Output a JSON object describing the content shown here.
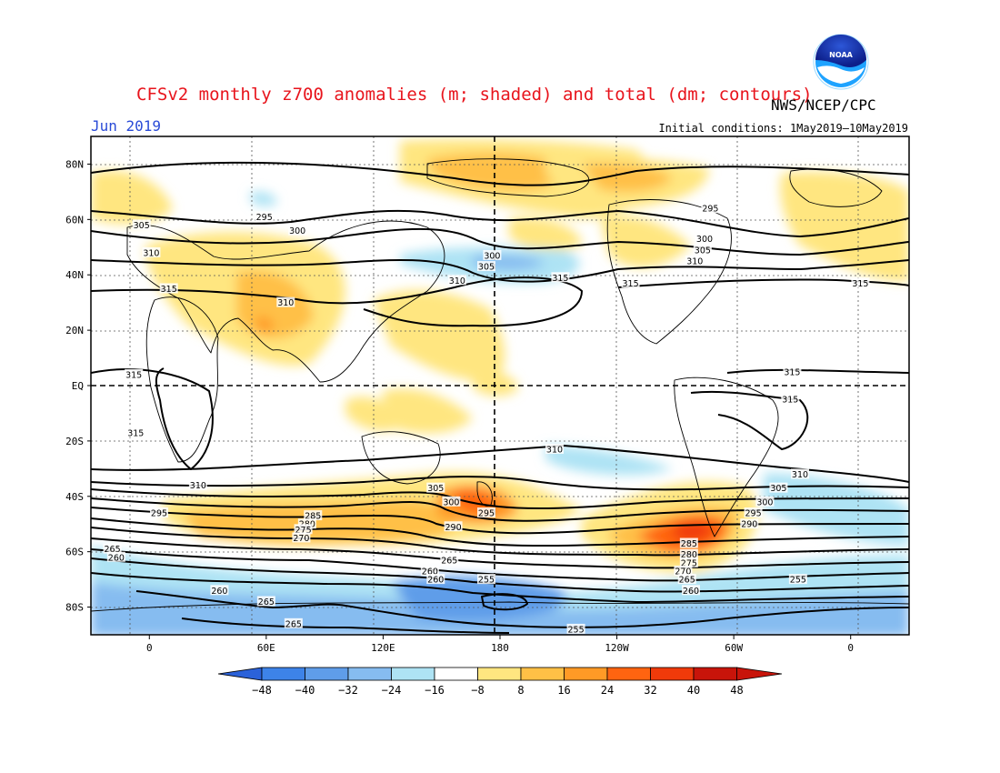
{
  "header": {
    "title": "CFSv2 monthly z700 anomalies (m; shaded) and total (dm; contours)",
    "month": "Jun 2019",
    "agency": "NWS/NCEP/CPC",
    "initial_conditions": "Initial conditions: 1May2019—10May2019",
    "logo_text": "NOAA",
    "logo_icon": "noaa-logo-icon"
  },
  "map": {
    "type": "geopotential-height-anomaly-map",
    "lat_labels": [
      "80N",
      "60N",
      "40N",
      "20N",
      "EQ",
      "20S",
      "40S",
      "60S",
      "80S"
    ],
    "lat_values": [
      80,
      60,
      40,
      20,
      0,
      -20,
      -40,
      -60,
      -80
    ],
    "lon_labels": [
      "0",
      "60E",
      "120E",
      "180",
      "120W",
      "60W",
      "0"
    ],
    "lon_values": [
      0,
      60,
      120,
      180,
      240,
      300,
      360
    ],
    "lon_range": [
      -30,
      390
    ],
    "lat_range": [
      -90,
      90
    ],
    "contour_labels": [
      {
        "text": "295",
        "lon": 59,
        "lat": 61
      },
      {
        "text": "300",
        "lon": 76,
        "lat": 56
      },
      {
        "text": "305",
        "lon": -4,
        "lat": 58
      },
      {
        "text": "310",
        "lon": 1,
        "lat": 48
      },
      {
        "text": "315",
        "lon": 10,
        "lat": 35
      },
      {
        "text": "310",
        "lon": 70,
        "lat": 30
      },
      {
        "text": "310",
        "lon": 158,
        "lat": 38
      },
      {
        "text": "305",
        "lon": 173,
        "lat": 43
      },
      {
        "text": "300",
        "lon": 176,
        "lat": 47
      },
      {
        "text": "315",
        "lon": 211,
        "lat": 39
      },
      {
        "text": "315",
        "lon": 247,
        "lat": 37
      },
      {
        "text": "295",
        "lon": 288,
        "lat": 64
      },
      {
        "text": "300",
        "lon": 285,
        "lat": 53
      },
      {
        "text": "305",
        "lon": 284,
        "lat": 49
      },
      {
        "text": "310",
        "lon": 280,
        "lat": 45
      },
      {
        "text": "315",
        "lon": 365,
        "lat": 37
      },
      {
        "text": "315",
        "lon": -8,
        "lat": 4
      },
      {
        "text": "315",
        "lon": -7,
        "lat": -17
      },
      {
        "text": "315",
        "lon": 330,
        "lat": 5
      },
      {
        "text": "315",
        "lon": 329,
        "lat": -5
      },
      {
        "text": "310",
        "lon": 208,
        "lat": -23
      },
      {
        "text": "310",
        "lon": 334,
        "lat": -32
      },
      {
        "text": "310",
        "lon": 25,
        "lat": -36
      },
      {
        "text": "305",
        "lon": 147,
        "lat": -37
      },
      {
        "text": "300",
        "lon": 155,
        "lat": -42
      },
      {
        "text": "295",
        "lon": 173,
        "lat": -46
      },
      {
        "text": "290",
        "lon": 156,
        "lat": -51
      },
      {
        "text": "295",
        "lon": 5,
        "lat": -46
      },
      {
        "text": "285",
        "lon": 84,
        "lat": -47
      },
      {
        "text": "280",
        "lon": 81,
        "lat": -50
      },
      {
        "text": "275",
        "lon": 79,
        "lat": -52
      },
      {
        "text": "270",
        "lon": 78,
        "lat": -55
      },
      {
        "text": "305",
        "lon": 323,
        "lat": -37
      },
      {
        "text": "300",
        "lon": 316,
        "lat": -42
      },
      {
        "text": "295",
        "lon": 310,
        "lat": -46
      },
      {
        "text": "290",
        "lon": 308,
        "lat": -50
      },
      {
        "text": "285",
        "lon": 277,
        "lat": -57
      },
      {
        "text": "280",
        "lon": 277,
        "lat": -61
      },
      {
        "text": "275",
        "lon": 277,
        "lat": -64
      },
      {
        "text": "270",
        "lon": 274,
        "lat": -67
      },
      {
        "text": "265",
        "lon": 276,
        "lat": -70
      },
      {
        "text": "260",
        "lon": 278,
        "lat": -74
      },
      {
        "text": "265",
        "lon": -19,
        "lat": -59
      },
      {
        "text": "260",
        "lon": -17,
        "lat": -62
      },
      {
        "text": "265",
        "lon": 154,
        "lat": -63
      },
      {
        "text": "260",
        "lon": 144,
        "lat": -67
      },
      {
        "text": "260",
        "lon": 147,
        "lat": -70
      },
      {
        "text": "255",
        "lon": 173,
        "lat": -70
      },
      {
        "text": "260",
        "lon": 36,
        "lat": -74
      },
      {
        "text": "265",
        "lon": 60,
        "lat": -78
      },
      {
        "text": "265",
        "lon": 74,
        "lat": -86
      },
      {
        "text": "255",
        "lon": 219,
        "lat": -88
      },
      {
        "text": "255",
        "lon": 333,
        "lat": -70
      }
    ]
  },
  "colorbar": {
    "labels": [
      "−48",
      "−40",
      "−32",
      "−24",
      "−16",
      "−8",
      "8",
      "16",
      "24",
      "32",
      "40",
      "48"
    ],
    "colors": [
      "#2b62d9",
      "#3d83e8",
      "#5f9de9",
      "#86bcf0",
      "#aee3f4",
      "#ffffff",
      "#ffe680",
      "#ffc046",
      "#ff9a26",
      "#ff6410",
      "#f03a0a",
      "#c8140a"
    ],
    "low_color": "#2b62d9",
    "high_color": "#c8140a"
  }
}
